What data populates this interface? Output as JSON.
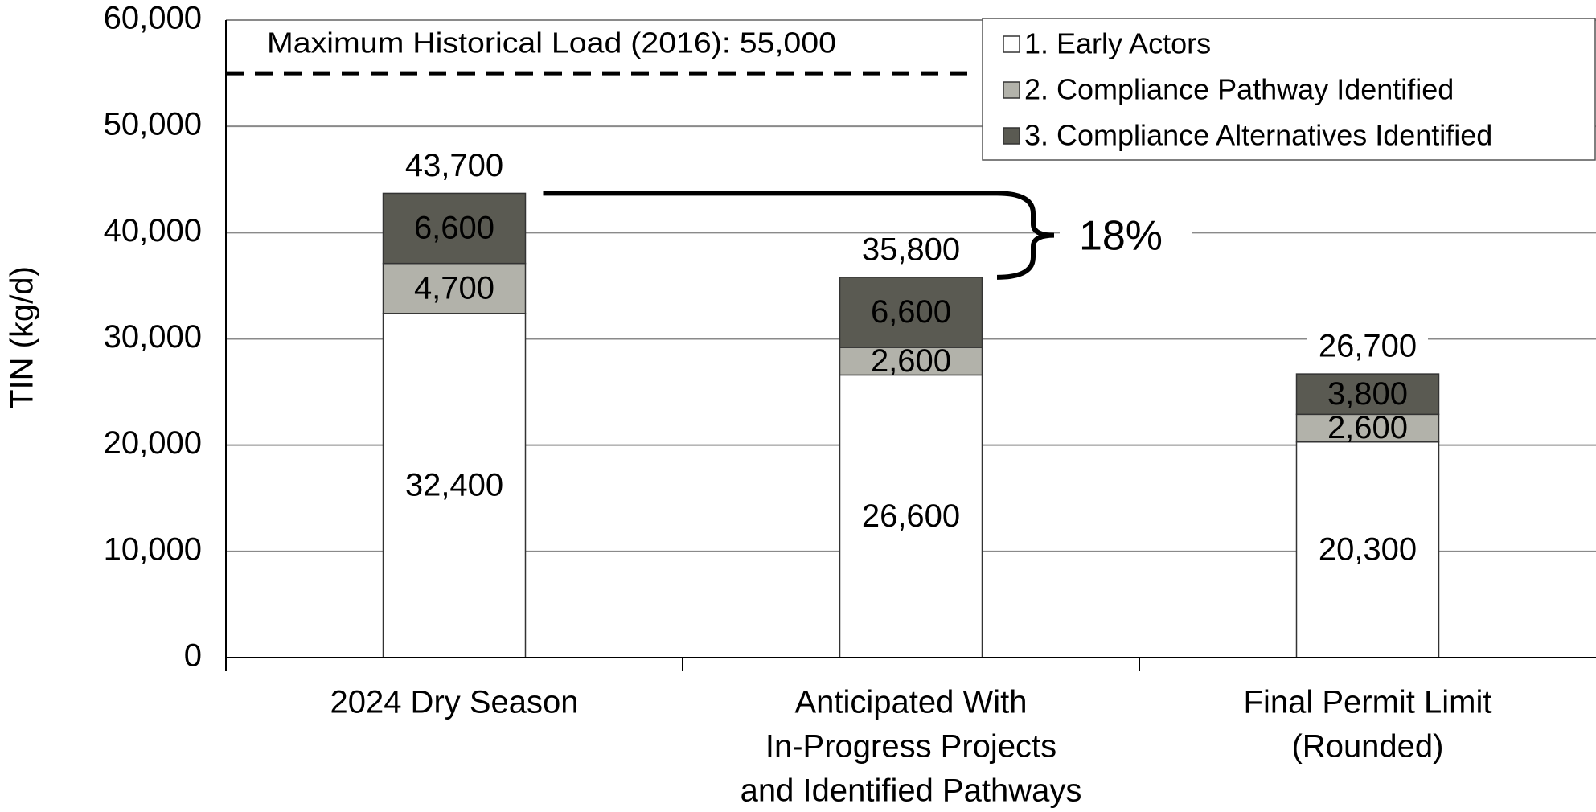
{
  "chart_data": {
    "type": "stacked_bar",
    "y_label": "TIN (kg/d)",
    "categories": [
      [
        "2024 Dry Season"
      ],
      [
        "Anticipated With",
        "In-Progress Projects",
        "and Identified Pathways"
      ],
      [
        "Final Permit Limit",
        "(Rounded)"
      ]
    ],
    "series": [
      {
        "name": "1. Early Actors",
        "color": "#ffffff",
        "label_color": "#000000",
        "values": [
          32400,
          26600,
          20300
        ],
        "value_labels": [
          "32,400",
          "26,600",
          "20,300"
        ]
      },
      {
        "name": "2. Compliance Pathway Identified",
        "color": "#b2b2aa",
        "label_color": "#000000",
        "values": [
          4700,
          2600,
          2600
        ],
        "value_labels": [
          "4,700",
          "2,600",
          "2,600"
        ]
      },
      {
        "name": "3. Compliance Alternatives Identified",
        "color": "#5a5a52",
        "label_color": "#ffffff",
        "values": [
          6600,
          6600,
          3800
        ],
        "value_labels": [
          "6,600",
          "6,600",
          "3,800"
        ]
      }
    ],
    "totals": [
      43700,
      35800,
      26700
    ],
    "total_labels": [
      "43,700",
      "35,800",
      "26,700"
    ],
    "reference_line": {
      "value": 55000,
      "label": "Maximum Historical Load (2016): 55,000"
    },
    "change_annotation": "18%",
    "ylim": [
      0,
      60000
    ],
    "yticks": [
      0,
      {
        "value": 10000,
        "label": "10,000"
      },
      {
        "value": 20000,
        "label": "20,000"
      },
      {
        "value": 30000,
        "label": "30,000"
      },
      {
        "value": 40000,
        "label": "40,000"
      },
      {
        "value": 50000,
        "label": "50,000"
      },
      {
        "value": 60000,
        "label": "60,000"
      }
    ],
    "grid": true,
    "legend": "top-right"
  }
}
